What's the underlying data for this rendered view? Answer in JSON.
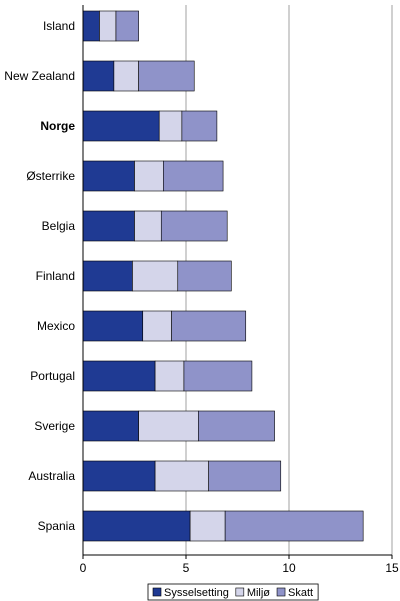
{
  "chart_data": {
    "type": "bar",
    "orientation": "horizontal",
    "stacked": true,
    "categories": [
      "Island",
      "New Zealand",
      "Norge",
      "Østerrike",
      "Belgia",
      "Finland",
      "Mexico",
      "Portugal",
      "Sverige",
      "Australia",
      "Spania"
    ],
    "highlight_category": "Norge",
    "series": [
      {
        "name": "Sysselsetting",
        "color": "#1f3a93",
        "values": [
          0.8,
          1.5,
          3.7,
          2.5,
          2.5,
          2.4,
          2.9,
          3.5,
          2.7,
          3.5,
          5.2
        ]
      },
      {
        "name": "Miljø",
        "color": "#d4d5ea",
        "values": [
          0.8,
          1.2,
          1.1,
          1.4,
          1.3,
          2.2,
          1.4,
          1.4,
          2.9,
          2.6,
          1.7
        ]
      },
      {
        "name": "Skatt",
        "color": "#8f93c9",
        "values": [
          1.1,
          2.7,
          1.7,
          2.9,
          3.2,
          2.6,
          3.6,
          3.3,
          3.7,
          3.5,
          6.7
        ]
      }
    ],
    "xlim": [
      0,
      15
    ],
    "xticks": [
      0,
      5,
      10,
      15
    ],
    "grid": true,
    "legend_position": "bottom"
  }
}
